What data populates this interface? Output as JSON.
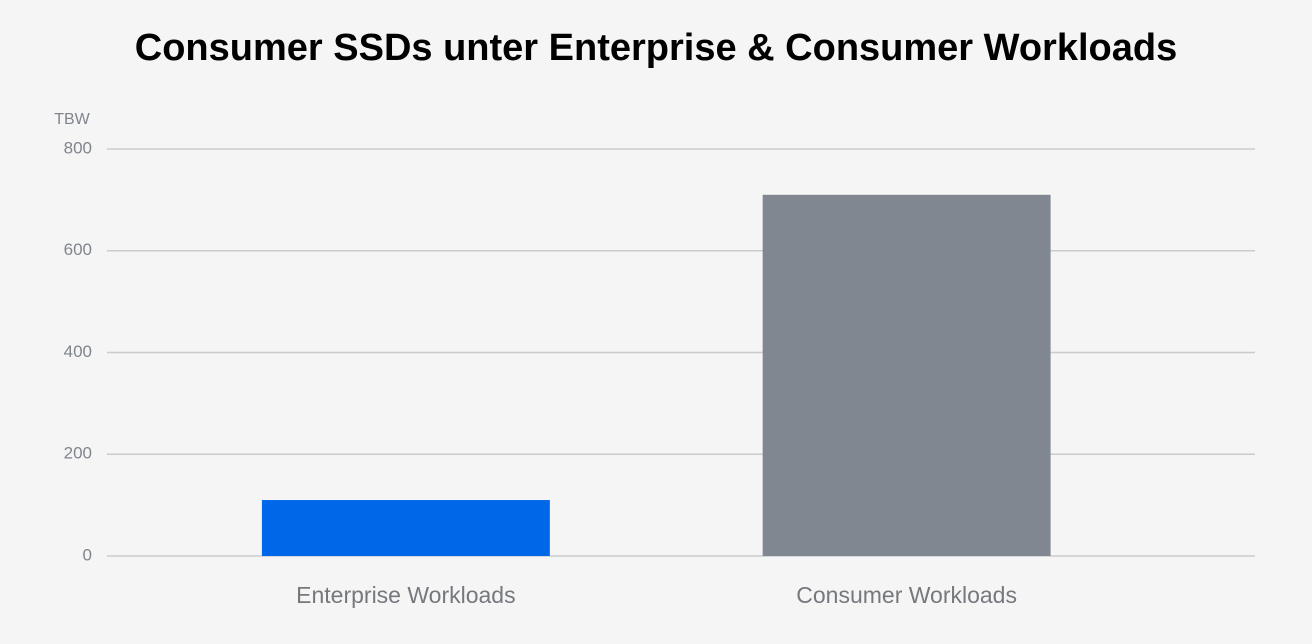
{
  "chart_data": {
    "type": "bar",
    "title": "Consumer SSDs unter Enterprise & Consumer Workloads",
    "y_label": "TBW",
    "categories": [
      "Enterprise Workloads",
      "Consumer Workloads"
    ],
    "values": [
      110,
      710
    ],
    "colors": [
      "#0068e8",
      "#808791"
    ],
    "ylim": [
      0,
      800
    ],
    "yticks": [
      0,
      200,
      400,
      600,
      800
    ],
    "grid": true
  }
}
